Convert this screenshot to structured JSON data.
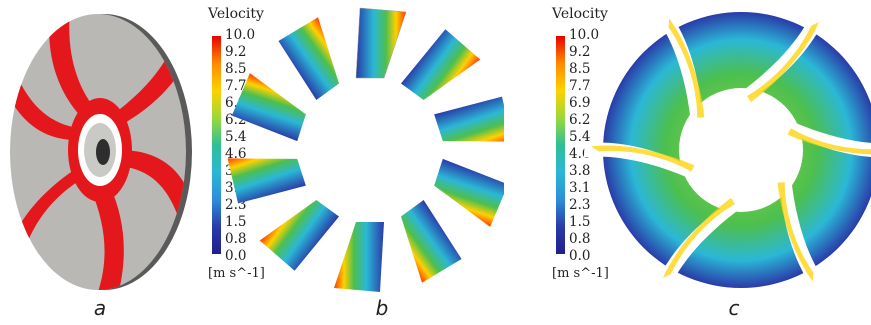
{
  "captions": {
    "a": "a",
    "b": "b",
    "c": "c"
  },
  "legend": {
    "title": "Velocity",
    "unit": "[m s^-1]",
    "ticks": [
      "10.0",
      "9.2",
      "8.5",
      "7.7",
      "6.9",
      "6.2",
      "5.4",
      "4.6",
      "3.8",
      "3.1",
      "2.3",
      "1.5",
      "0.8",
      "0.0"
    ],
    "colorscale": [
      "#e60000",
      "#ff3a00",
      "#ff8a00",
      "#ffd100",
      "#e6f000",
      "#9bd93a",
      "#4cbf4f",
      "#2fbf95",
      "#2bb7d6",
      "#2c8fd8",
      "#2d5fc7",
      "#2a3ba8",
      "#1f1f8c"
    ]
  },
  "colors": {
    "impeller_body": "#b8b7b4",
    "blade": "#e4181c",
    "hub_ring": "#ffffff",
    "shaft": "#3b3b3b"
  }
}
